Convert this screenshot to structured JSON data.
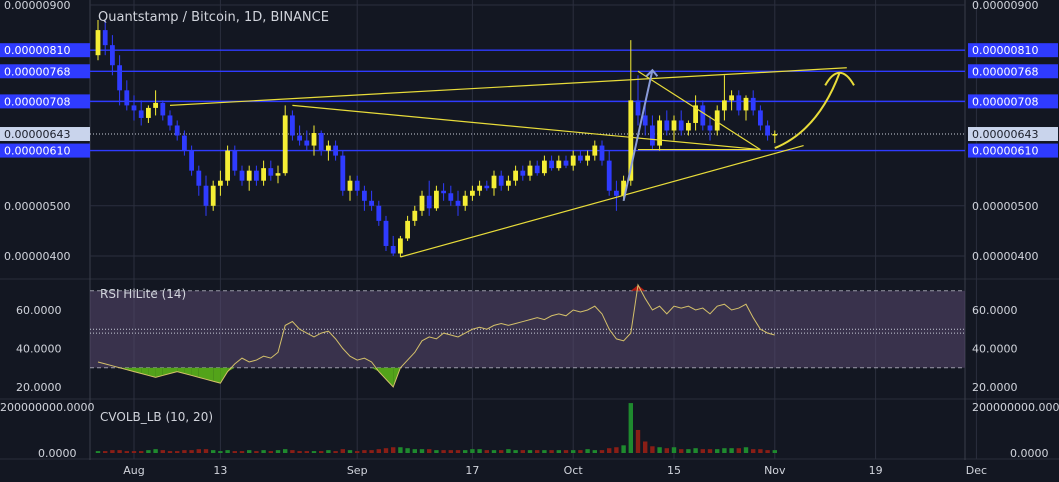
{
  "title": "Quantstamp / Bitcoin, 1D, BINANCE",
  "colors": {
    "background": "#131722",
    "grid": "#2b2f3e",
    "axis_text": "#d1d4dc",
    "candle_up": "#f5ee35",
    "candle_down": "#2f3bff",
    "level_line": "#2f3bff",
    "trend_line": "#e8dc3a",
    "arrow": "#8a9bd8",
    "rsi_line": "#d4c06a",
    "rsi_fill": "#5a4870",
    "rsi_oversold": "#53a31a",
    "rsi_overbought": "#b01a12",
    "vol_green": "#1e8a2e",
    "vol_red": "#8a1e16"
  },
  "price_axis": {
    "ticks": [
      {
        "value": 9e-06,
        "label": "0.00000900"
      },
      {
        "value": 5e-06,
        "label": "0.00000500"
      },
      {
        "value": 4e-06,
        "label": "0.00000400"
      }
    ],
    "level_badges": [
      {
        "value": 8.1e-06,
        "label": "0.00000810"
      },
      {
        "value": 7.68e-06,
        "label": "0.00000768"
      },
      {
        "value": 7.08e-06,
        "label": "0.00000708"
      },
      {
        "value": 6.1e-06,
        "label": "0.00000610"
      }
    ],
    "current": {
      "value": 6.43e-06,
      "label": "0.00000643"
    }
  },
  "rsi": {
    "label": "RSI HiLite (14)",
    "ticks": [
      {
        "value": 60,
        "label": "60.0000"
      },
      {
        "value": 40,
        "label": "40.0000"
      },
      {
        "value": 20,
        "label": "20.0000"
      }
    ],
    "upper_band": 70,
    "lower_band": 30,
    "mid_lines": [
      48,
      50
    ]
  },
  "volume": {
    "label": "CVOLB_LB (10, 20)",
    "ticks": [
      {
        "value": 200000000,
        "label": "200000000.0000"
      },
      {
        "value": 0,
        "label": "0.0000"
      }
    ]
  },
  "x_axis": {
    "labels": [
      {
        "index": 5,
        "label": "Aug"
      },
      {
        "index": 17,
        "label": "13"
      },
      {
        "index": 36,
        "label": "Sep"
      },
      {
        "index": 52,
        "label": "17"
      },
      {
        "index": 66,
        "label": "Oct"
      },
      {
        "index": 80,
        "label": "15"
      },
      {
        "index": 94,
        "label": "Nov"
      },
      {
        "index": 108,
        "label": "19"
      },
      {
        "index": 122,
        "label": "Dec"
      }
    ]
  },
  "chart_data": {
    "type": "candlestick",
    "title": "Quantstamp / Bitcoin, 1D, BINANCE",
    "interval": "1D",
    "series_note": "daily candles, values in BTC (price scale 1e-8 = satoshi units shown as decimals)",
    "candles": [
      {
        "i": 0,
        "o": 8e-06,
        "h": 8.7e-06,
        "l": 7.9e-06,
        "c": 8.5e-06
      },
      {
        "i": 1,
        "o": 8.5e-06,
        "h": 8.7e-06,
        "l": 8e-06,
        "c": 8.2e-06
      },
      {
        "i": 2,
        "o": 8.2e-06,
        "h": 8.4e-06,
        "l": 7.6e-06,
        "c": 7.8e-06
      },
      {
        "i": 3,
        "o": 7.8e-06,
        "h": 8e-06,
        "l": 7e-06,
        "c": 7.3e-06
      },
      {
        "i": 4,
        "o": 7.3e-06,
        "h": 7.5e-06,
        "l": 6.9e-06,
        "c": 7e-06
      },
      {
        "i": 5,
        "o": 7e-06,
        "h": 7.2e-06,
        "l": 6.7e-06,
        "c": 6.9e-06
      },
      {
        "i": 6,
        "o": 6.9e-06,
        "h": 7.1e-06,
        "l": 6.6e-06,
        "c": 6.75e-06
      },
      {
        "i": 7,
        "o": 6.75e-06,
        "h": 7e-06,
        "l": 6.65e-06,
        "c": 6.95e-06
      },
      {
        "i": 8,
        "o": 6.95e-06,
        "h": 7.3e-06,
        "l": 6.8e-06,
        "c": 7.05e-06
      },
      {
        "i": 9,
        "o": 7.05e-06,
        "h": 7.1e-06,
        "l": 6.7e-06,
        "c": 6.8e-06
      },
      {
        "i": 10,
        "o": 6.8e-06,
        "h": 6.9e-06,
        "l": 6.5e-06,
        "c": 6.6e-06
      },
      {
        "i": 11,
        "o": 6.6e-06,
        "h": 6.7e-06,
        "l": 6.3e-06,
        "c": 6.4e-06
      },
      {
        "i": 12,
        "o": 6.4e-06,
        "h": 6.5e-06,
        "l": 6e-06,
        "c": 6.1e-06
      },
      {
        "i": 13,
        "o": 6.1e-06,
        "h": 6.2e-06,
        "l": 5.6e-06,
        "c": 5.7e-06
      },
      {
        "i": 14,
        "o": 5.7e-06,
        "h": 5.8e-06,
        "l": 5.2e-06,
        "c": 5.4e-06
      },
      {
        "i": 15,
        "o": 5.4e-06,
        "h": 5.6e-06,
        "l": 4.8e-06,
        "c": 5e-06
      },
      {
        "i": 16,
        "o": 5e-06,
        "h": 5.5e-06,
        "l": 4.9e-06,
        "c": 5.4e-06
      },
      {
        "i": 17,
        "o": 5.4e-06,
        "h": 5.7e-06,
        "l": 5.2e-06,
        "c": 5.5e-06
      },
      {
        "i": 18,
        "o": 5.5e-06,
        "h": 6.2e-06,
        "l": 5.4e-06,
        "c": 6.1e-06
      },
      {
        "i": 19,
        "o": 6.1e-06,
        "h": 6.2e-06,
        "l": 5.6e-06,
        "c": 5.7e-06
      },
      {
        "i": 20,
        "o": 5.7e-06,
        "h": 5.8e-06,
        "l": 5.4e-06,
        "c": 5.5e-06
      },
      {
        "i": 21,
        "o": 5.5e-06,
        "h": 5.8e-06,
        "l": 5.3e-06,
        "c": 5.7e-06
      },
      {
        "i": 22,
        "o": 5.7e-06,
        "h": 5.8e-06,
        "l": 5.4e-06,
        "c": 5.5e-06
      },
      {
        "i": 23,
        "o": 5.5e-06,
        "h": 5.9e-06,
        "l": 5.4e-06,
        "c": 5.75e-06
      },
      {
        "i": 24,
        "o": 5.75e-06,
        "h": 5.9e-06,
        "l": 5.5e-06,
        "c": 5.6e-06
      },
      {
        "i": 25,
        "o": 5.6e-06,
        "h": 5.8e-06,
        "l": 5.45e-06,
        "c": 5.65e-06
      },
      {
        "i": 26,
        "o": 5.65e-06,
        "h": 7e-06,
        "l": 5.6e-06,
        "c": 6.8e-06
      },
      {
        "i": 27,
        "o": 6.8e-06,
        "h": 6.9e-06,
        "l": 6.3e-06,
        "c": 6.4e-06
      },
      {
        "i": 28,
        "o": 6.4e-06,
        "h": 6.6e-06,
        "l": 6.2e-06,
        "c": 6.3e-06
      },
      {
        "i": 29,
        "o": 6.3e-06,
        "h": 6.5e-06,
        "l": 6.1e-06,
        "c": 6.2e-06
      },
      {
        "i": 30,
        "o": 6.2e-06,
        "h": 6.6e-06,
        "l": 6e-06,
        "c": 6.45e-06
      },
      {
        "i": 31,
        "o": 6.45e-06,
        "h": 6.5e-06,
        "l": 6e-06,
        "c": 6.1e-06
      },
      {
        "i": 32,
        "o": 6.1e-06,
        "h": 6.3e-06,
        "l": 5.9e-06,
        "c": 6.2e-06
      },
      {
        "i": 33,
        "o": 6.2e-06,
        "h": 6.3e-06,
        "l": 5.9e-06,
        "c": 6e-06
      },
      {
        "i": 34,
        "o": 6e-06,
        "h": 6.1e-06,
        "l": 5.2e-06,
        "c": 5.3e-06
      },
      {
        "i": 35,
        "o": 5.3e-06,
        "h": 5.6e-06,
        "l": 5.1e-06,
        "c": 5.5e-06
      },
      {
        "i": 36,
        "o": 5.5e-06,
        "h": 5.6e-06,
        "l": 5.2e-06,
        "c": 5.3e-06
      },
      {
        "i": 37,
        "o": 5.3e-06,
        "h": 5.4e-06,
        "l": 4.9e-06,
        "c": 5.1e-06
      },
      {
        "i": 38,
        "o": 5.1e-06,
        "h": 5.3e-06,
        "l": 4.9e-06,
        "c": 5e-06
      },
      {
        "i": 39,
        "o": 5e-06,
        "h": 5.1e-06,
        "l": 4.6e-06,
        "c": 4.7e-06
      },
      {
        "i": 40,
        "o": 4.7e-06,
        "h": 4.8e-06,
        "l": 4.1e-06,
        "c": 4.2e-06
      },
      {
        "i": 41,
        "o": 4.2e-06,
        "h": 4.4e-06,
        "l": 4e-06,
        "c": 4.05e-06
      },
      {
        "i": 42,
        "o": 4.05e-06,
        "h": 4.4e-06,
        "l": 3.98e-06,
        "c": 4.35e-06
      },
      {
        "i": 43,
        "o": 4.35e-06,
        "h": 4.8e-06,
        "l": 4.3e-06,
        "c": 4.7e-06
      },
      {
        "i": 44,
        "o": 4.7e-06,
        "h": 5e-06,
        "l": 4.6e-06,
        "c": 4.9e-06
      },
      {
        "i": 45,
        "o": 4.9e-06,
        "h": 5.3e-06,
        "l": 4.8e-06,
        "c": 5.2e-06
      },
      {
        "i": 46,
        "o": 5.2e-06,
        "h": 5.5e-06,
        "l": 4.8e-06,
        "c": 4.95e-06
      },
      {
        "i": 47,
        "o": 4.95e-06,
        "h": 5.4e-06,
        "l": 4.9e-06,
        "c": 5.3e-06
      },
      {
        "i": 48,
        "o": 5.3e-06,
        "h": 5.45e-06,
        "l": 5.1e-06,
        "c": 5.25e-06
      },
      {
        "i": 49,
        "o": 5.25e-06,
        "h": 5.4e-06,
        "l": 5e-06,
        "c": 5.1e-06
      },
      {
        "i": 50,
        "o": 5.1e-06,
        "h": 5.3e-06,
        "l": 4.8e-06,
        "c": 5e-06
      },
      {
        "i": 51,
        "o": 5e-06,
        "h": 5.3e-06,
        "l": 4.9e-06,
        "c": 5.2e-06
      },
      {
        "i": 52,
        "o": 5.2e-06,
        "h": 5.4e-06,
        "l": 5.1e-06,
        "c": 5.3e-06
      },
      {
        "i": 53,
        "o": 5.3e-06,
        "h": 5.5e-06,
        "l": 5.2e-06,
        "c": 5.4e-06
      },
      {
        "i": 54,
        "o": 5.4e-06,
        "h": 5.5e-06,
        "l": 5.3e-06,
        "c": 5.35e-06
      },
      {
        "i": 55,
        "o": 5.35e-06,
        "h": 5.7e-06,
        "l": 5.2e-06,
        "c": 5.6e-06
      },
      {
        "i": 56,
        "o": 5.6e-06,
        "h": 5.7e-06,
        "l": 5.3e-06,
        "c": 5.4e-06
      },
      {
        "i": 57,
        "o": 5.4e-06,
        "h": 5.6e-06,
        "l": 5.3e-06,
        "c": 5.5e-06
      },
      {
        "i": 58,
        "o": 5.5e-06,
        "h": 5.8e-06,
        "l": 5.4e-06,
        "c": 5.7e-06
      },
      {
        "i": 59,
        "o": 5.7e-06,
        "h": 5.8e-06,
        "l": 5.5e-06,
        "c": 5.6e-06
      },
      {
        "i": 60,
        "o": 5.6e-06,
        "h": 5.9e-06,
        "l": 5.5e-06,
        "c": 5.8e-06
      },
      {
        "i": 61,
        "o": 5.8e-06,
        "h": 5.9e-06,
        "l": 5.6e-06,
        "c": 5.65e-06
      },
      {
        "i": 62,
        "o": 5.65e-06,
        "h": 6e-06,
        "l": 5.6e-06,
        "c": 5.9e-06
      },
      {
        "i": 63,
        "o": 5.9e-06,
        "h": 6e-06,
        "l": 5.7e-06,
        "c": 5.75e-06
      },
      {
        "i": 64,
        "o": 5.75e-06,
        "h": 6e-06,
        "l": 5.7e-06,
        "c": 5.9e-06
      },
      {
        "i": 65,
        "o": 5.9e-06,
        "h": 6e-06,
        "l": 5.75e-06,
        "c": 5.8e-06
      },
      {
        "i": 66,
        "o": 5.8e-06,
        "h": 6.1e-06,
        "l": 5.7e-06,
        "c": 6e-06
      },
      {
        "i": 67,
        "o": 6e-06,
        "h": 6.1e-06,
        "l": 5.85e-06,
        "c": 5.9e-06
      },
      {
        "i": 68,
        "o": 5.9e-06,
        "h": 6.1e-06,
        "l": 5.8e-06,
        "c": 6e-06
      },
      {
        "i": 69,
        "o": 6e-06,
        "h": 6.3e-06,
        "l": 5.9e-06,
        "c": 6.2e-06
      },
      {
        "i": 70,
        "o": 6.2e-06,
        "h": 6.3e-06,
        "l": 5.8e-06,
        "c": 5.9e-06
      },
      {
        "i": 71,
        "o": 5.9e-06,
        "h": 6.1e-06,
        "l": 5.2e-06,
        "c": 5.3e-06
      },
      {
        "i": 72,
        "o": 5.3e-06,
        "h": 5.5e-06,
        "l": 4.9e-06,
        "c": 5.2e-06
      },
      {
        "i": 73,
        "o": 5.2e-06,
        "h": 5.6e-06,
        "l": 5.1e-06,
        "c": 5.5e-06
      },
      {
        "i": 74,
        "o": 5.5e-06,
        "h": 8.3e-06,
        "l": 5.4e-06,
        "c": 7.1e-06
      },
      {
        "i": 75,
        "o": 7.1e-06,
        "h": 7.6e-06,
        "l": 6.6e-06,
        "c": 6.8e-06
      },
      {
        "i": 76,
        "o": 6.8e-06,
        "h": 7e-06,
        "l": 6.4e-06,
        "c": 6.6e-06
      },
      {
        "i": 77,
        "o": 6.6e-06,
        "h": 6.8e-06,
        "l": 6.1e-06,
        "c": 6.2e-06
      },
      {
        "i": 78,
        "o": 6.2e-06,
        "h": 6.8e-06,
        "l": 6.1e-06,
        "c": 6.7e-06
      },
      {
        "i": 79,
        "o": 6.7e-06,
        "h": 6.9e-06,
        "l": 6.4e-06,
        "c": 6.5e-06
      },
      {
        "i": 80,
        "o": 6.5e-06,
        "h": 6.8e-06,
        "l": 6.3e-06,
        "c": 6.7e-06
      },
      {
        "i": 81,
        "o": 6.7e-06,
        "h": 6.9e-06,
        "l": 6.4e-06,
        "c": 6.5e-06
      },
      {
        "i": 82,
        "o": 6.5e-06,
        "h": 6.7e-06,
        "l": 6.4e-06,
        "c": 6.65e-06
      },
      {
        "i": 83,
        "o": 6.65e-06,
        "h": 7.2e-06,
        "l": 6.5e-06,
        "c": 7e-06
      },
      {
        "i": 84,
        "o": 7e-06,
        "h": 7.1e-06,
        "l": 6.5e-06,
        "c": 6.6e-06
      },
      {
        "i": 85,
        "o": 6.6e-06,
        "h": 6.8e-06,
        "l": 6.3e-06,
        "c": 6.5e-06
      },
      {
        "i": 86,
        "o": 6.5e-06,
        "h": 7e-06,
        "l": 6.4e-06,
        "c": 6.9e-06
      },
      {
        "i": 87,
        "o": 6.9e-06,
        "h": 7.6e-06,
        "l": 6.7e-06,
        "c": 7.1e-06
      },
      {
        "i": 88,
        "o": 7.1e-06,
        "h": 7.3e-06,
        "l": 6.9e-06,
        "c": 7.2e-06
      },
      {
        "i": 89,
        "o": 7.2e-06,
        "h": 7.3e-06,
        "l": 6.8e-06,
        "c": 6.9e-06
      },
      {
        "i": 90,
        "o": 6.9e-06,
        "h": 7.2e-06,
        "l": 6.7e-06,
        "c": 7.15e-06
      },
      {
        "i": 91,
        "o": 7.15e-06,
        "h": 7.3e-06,
        "l": 6.8e-06,
        "c": 6.9e-06
      },
      {
        "i": 92,
        "o": 6.9e-06,
        "h": 7e-06,
        "l": 6.5e-06,
        "c": 6.6e-06
      },
      {
        "i": 93,
        "o": 6.6e-06,
        "h": 6.7e-06,
        "l": 6.3e-06,
        "c": 6.4e-06
      },
      {
        "i": 94,
        "o": 6.4e-06,
        "h": 6.5e-06,
        "l": 6.25e-06,
        "c": 6.43e-06
      }
    ],
    "horizontal_levels": [
      8.1e-06,
      7.68e-06,
      7.08e-06,
      6.1e-06
    ],
    "current_price": 6.43e-06,
    "rsi": {
      "name": "RSI HiLite (14)",
      "values": [
        33,
        32,
        31,
        30,
        29,
        28,
        27,
        26,
        25,
        26,
        27,
        28,
        27,
        26,
        25,
        24,
        23,
        22,
        28,
        32,
        35,
        33,
        34,
        36,
        35,
        38,
        52,
        54,
        50,
        48,
        46,
        48,
        49,
        45,
        40,
        36,
        34,
        35,
        33,
        28,
        24,
        20,
        30,
        34,
        38,
        44,
        46,
        45,
        48,
        47,
        46,
        48,
        50,
        51,
        50,
        52,
        53,
        52,
        53,
        54,
        55,
        56,
        55,
        57,
        58,
        57,
        60,
        59,
        60,
        62,
        58,
        50,
        45,
        44,
        48,
        73,
        66,
        60,
        62,
        58,
        62,
        61,
        62,
        60,
        61,
        58,
        62,
        63,
        60,
        61,
        63,
        56,
        50,
        48,
        47
      ],
      "ylim": [
        15,
        75
      ],
      "upper_band": 70,
      "lower_band": 30
    },
    "volume": {
      "name": "CVOLB_LB (10, 20)",
      "values": [
        2,
        2,
        3,
        3,
        2,
        2,
        2,
        3,
        4,
        3,
        2,
        2,
        3,
        3,
        4,
        4,
        3,
        2,
        3,
        2,
        2,
        3,
        2,
        3,
        2,
        3,
        4,
        3,
        2,
        2,
        2,
        2,
        3,
        2,
        4,
        3,
        2,
        3,
        3,
        4,
        5,
        6,
        6,
        5,
        4,
        4,
        4,
        3,
        3,
        3,
        3,
        3,
        4,
        4,
        3,
        3,
        3,
        4,
        3,
        3,
        3,
        3,
        3,
        3,
        3,
        3,
        3,
        3,
        4,
        3,
        3,
        5,
        6,
        8,
        52,
        24,
        12,
        7,
        6,
        5,
        6,
        4,
        4,
        5,
        4,
        4,
        4,
        5,
        5,
        5,
        6,
        4,
        4,
        3,
        3
      ],
      "ylim": [
        0,
        55
      ],
      "unit_note": "relative scale, 50 ≈ 200000000"
    },
    "annotations": [
      {
        "type": "trendline",
        "from": {
          "i": 10,
          "p": 7e-06
        },
        "to": {
          "i": 104,
          "p": 7.75e-06
        }
      },
      {
        "type": "trendline",
        "from": {
          "i": 27,
          "p": 7e-06
        },
        "to": {
          "i": 92,
          "p": 6.12e-06
        }
      },
      {
        "type": "trendline",
        "from": {
          "i": 42,
          "p": 3.98e-06
        },
        "to": {
          "i": 98,
          "p": 6.2e-06
        }
      },
      {
        "type": "trendline",
        "from": {
          "i": 75,
          "p": 7.68e-06
        },
        "to": {
          "i": 92,
          "p": 6.12e-06
        }
      },
      {
        "type": "trendline",
        "from": {
          "i": 75,
          "p": 6.12e-06
        },
        "to": {
          "i": 92,
          "p": 6.12e-06
        }
      }
    ]
  }
}
